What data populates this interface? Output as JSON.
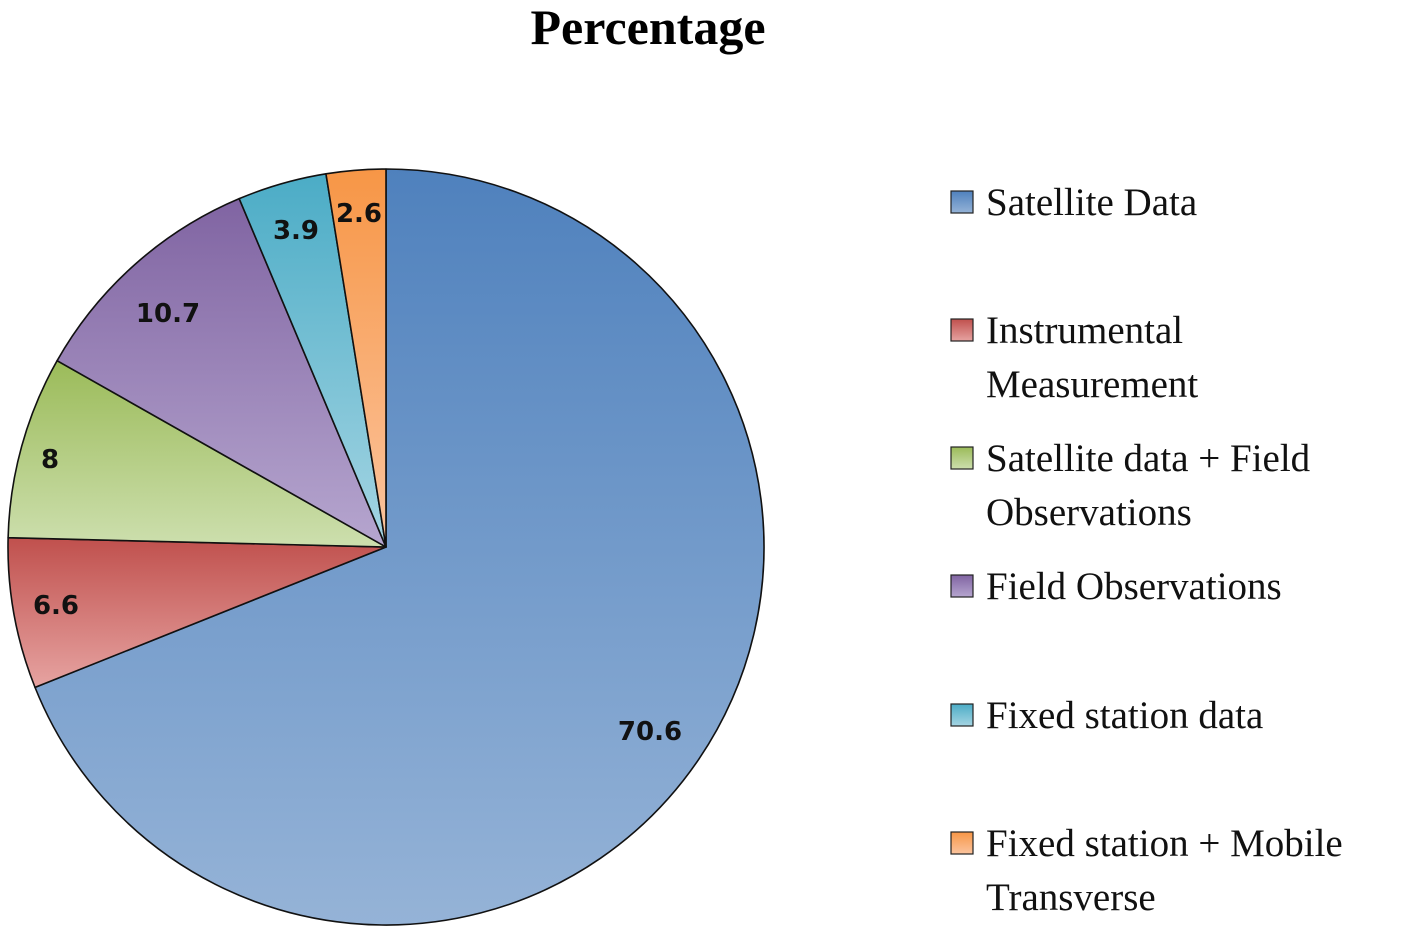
{
  "chart_data": {
    "type": "pie",
    "title": "Percentage",
    "categories": [
      "Satellite Data",
      "Instrumental Measurement",
      "Satellite data + Field Observations",
      "Field Observations",
      "Fixed station data",
      "Fixed station + Mobile Transverse"
    ],
    "values": [
      70.6,
      6.6,
      8,
      10.7,
      3.9,
      2.6
    ],
    "value_labels": [
      "70.6",
      "6.6",
      "8",
      "10.7",
      "3.9",
      "2.6"
    ],
    "legend_lines": [
      [
        "Satellite Data"
      ],
      [
        "Instrumental",
        "Measurement"
      ],
      [
        "Satellite data + Field",
        "Observations"
      ],
      [
        "Field Observations"
      ],
      [
        "Fixed station data"
      ],
      [
        "Fixed station + Mobile",
        "Transverse"
      ]
    ],
    "colors": [
      [
        "#4f81bd",
        "#95b3d7"
      ],
      [
        "#c0504d",
        "#e6a3a1"
      ],
      [
        "#9bbb59",
        "#cddfae"
      ],
      [
        "#8064a2",
        "#b6a6cf"
      ],
      [
        "#4bacc6",
        "#a5d5e3"
      ],
      [
        "#f79646",
        "#fbc49e"
      ]
    ],
    "start_angle_deg": 0,
    "direction": "clockwise",
    "legend_position": "right"
  }
}
